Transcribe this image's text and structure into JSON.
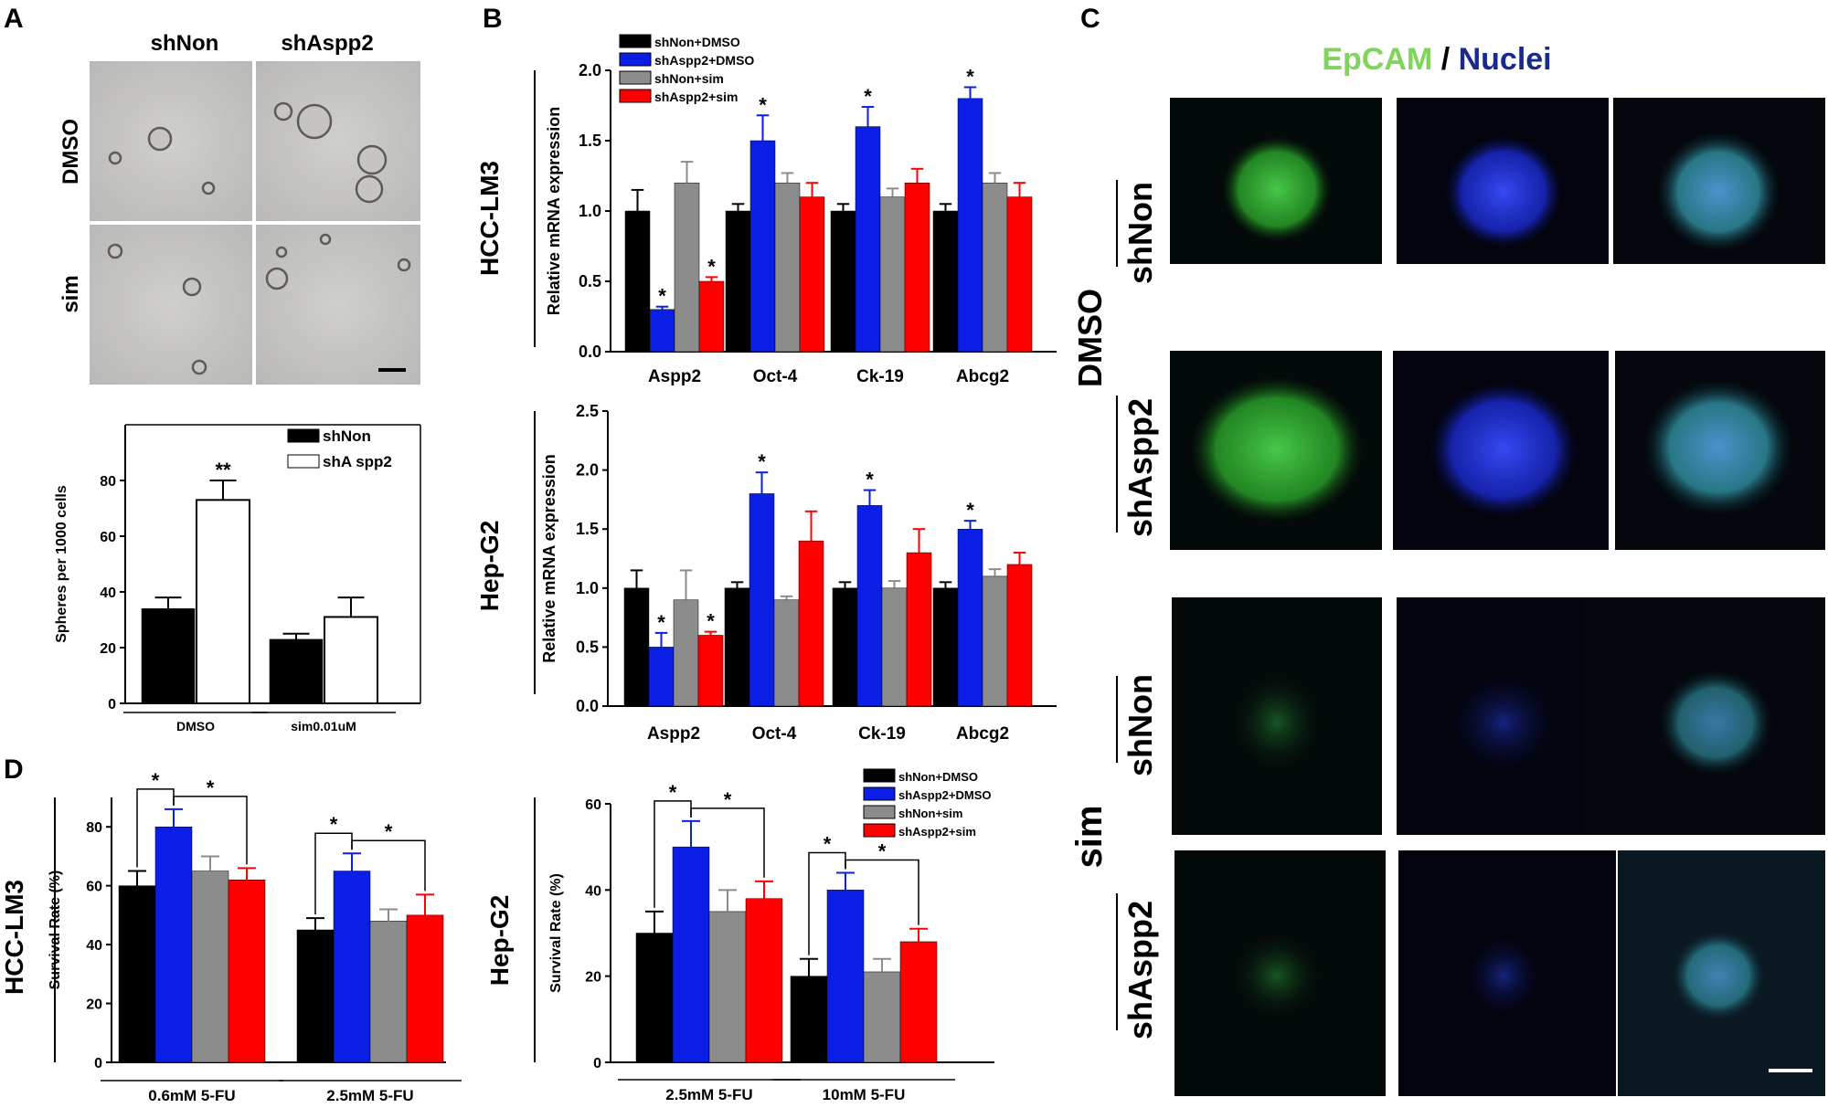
{
  "panel_letters": [
    "A",
    "B",
    "C",
    "D"
  ],
  "panelA": {
    "col_labels": [
      "shNon",
      "shAspp2"
    ],
    "row_labels": [
      "DMSO",
      "sim"
    ]
  },
  "panelC": {
    "title_parts": [
      "EpCAM",
      " / ",
      "Nuclei"
    ],
    "title_colors": [
      "#7fd45a",
      "#000000",
      "#1a2a8a"
    ],
    "row_labels": [
      "shNon",
      "shAspp2",
      "shNon",
      "shAspp2"
    ],
    "group_labels": [
      "DMSO",
      "sim"
    ]
  },
  "chart_data": [
    {
      "id": "A-spheres",
      "type": "bar",
      "categories": [
        "DMSO",
        "sim0.01uM"
      ],
      "series": [
        {
          "name": "shNon",
          "values": [
            34,
            23
          ],
          "errors": [
            4,
            2
          ],
          "color": "#000000"
        },
        {
          "name": "shA spp2",
          "values": [
            73,
            31
          ],
          "errors": [
            7,
            7
          ],
          "color": "#ffffff"
        }
      ],
      "ylabel": "Spheres per 1000 cells",
      "ylim": [
        0,
        100
      ],
      "yticks": [
        "0",
        "20",
        "40",
        "60",
        "80"
      ],
      "annotations": [
        "**"
      ]
    },
    {
      "id": "B-HCC-LM3",
      "type": "bar",
      "row_label": "HCC-LM3",
      "categories": [
        "Aspp2",
        "Oct-4",
        "Ck-19",
        "Abcg2"
      ],
      "series": [
        {
          "name": "shNon+DMSO",
          "values": [
            1.0,
            1.0,
            1.0,
            1.0
          ],
          "errors": [
            0.15,
            0.05,
            0.05,
            0.05
          ],
          "color": "#000000"
        },
        {
          "name": "shAspp2+DMSO",
          "values": [
            0.3,
            1.5,
            1.6,
            1.8
          ],
          "errors": [
            0.02,
            0.18,
            0.14,
            0.08
          ],
          "color": "#0a1ee6"
        },
        {
          "name": "shNon+sim",
          "values": [
            1.2,
            1.2,
            1.1,
            1.2
          ],
          "errors": [
            0.15,
            0.07,
            0.06,
            0.07
          ],
          "color": "#8c8c8c"
        },
        {
          "name": "shAspp2+sim",
          "values": [
            0.5,
            1.1,
            1.2,
            1.1
          ],
          "errors": [
            0.03,
            0.1,
            0.1,
            0.1
          ],
          "color": "#ff0000"
        }
      ],
      "ylabel": "Relative mRNA expression",
      "ylim": [
        0,
        2.0
      ],
      "yticks": [
        "0.0",
        "0.5",
        "1.0",
        "1.5",
        "2.0"
      ],
      "annotations": [
        "*"
      ]
    },
    {
      "id": "B-Hep-G2",
      "type": "bar",
      "row_label": "Hep-G2",
      "categories": [
        "Aspp2",
        "Oct-4",
        "Ck-19",
        "Abcg2"
      ],
      "series": [
        {
          "name": "shNon+DMSO",
          "values": [
            1.0,
            1.0,
            1.0,
            1.0
          ],
          "errors": [
            0.15,
            0.05,
            0.05,
            0.05
          ],
          "color": "#000000"
        },
        {
          "name": "shAspp2+DMSO",
          "values": [
            0.5,
            1.8,
            1.7,
            1.5
          ],
          "errors": [
            0.12,
            0.18,
            0.13,
            0.07
          ],
          "color": "#0a1ee6"
        },
        {
          "name": "shNon+sim",
          "values": [
            0.9,
            0.9,
            1.0,
            1.1
          ],
          "errors": [
            0.25,
            0.03,
            0.06,
            0.06
          ],
          "color": "#8c8c8c"
        },
        {
          "name": "shAspp2+sim",
          "values": [
            0.6,
            1.4,
            1.3,
            1.2
          ],
          "errors": [
            0.03,
            0.25,
            0.2,
            0.1
          ],
          "color": "#ff0000"
        }
      ],
      "ylabel": "Relative mRNA expression",
      "ylim": [
        0,
        2.5
      ],
      "yticks": [
        "0.0",
        "0.5",
        "1.0",
        "1.5",
        "2.0",
        "2.5"
      ],
      "annotations": [
        "*"
      ]
    },
    {
      "id": "D-HCC-LM3",
      "type": "bar",
      "row_label": "HCC-LM3",
      "categories": [
        "0.6mM 5-FU",
        "2.5mM 5-FU"
      ],
      "series": [
        {
          "name": "shNon+DMSO",
          "values": [
            60,
            45
          ],
          "errors": [
            5,
            4
          ],
          "color": "#000000"
        },
        {
          "name": "shAspp2+DMSO",
          "values": [
            80,
            65
          ],
          "errors": [
            6,
            6
          ],
          "color": "#0a1ee6"
        },
        {
          "name": "shNon+sim",
          "values": [
            65,
            48
          ],
          "errors": [
            5,
            4
          ],
          "color": "#8c8c8c"
        },
        {
          "name": "shAspp2+sim",
          "values": [
            62,
            50
          ],
          "errors": [
            4,
            7
          ],
          "color": "#ff0000"
        }
      ],
      "ylabel": "Survival Rate (%)",
      "ylim": [
        0,
        90
      ],
      "yticks": [
        "0",
        "20",
        "40",
        "60",
        "80"
      ],
      "annotations": [
        "*"
      ]
    },
    {
      "id": "D-Hep-G2",
      "type": "bar",
      "row_label": "Hep-G2",
      "categories": [
        "2.5mM 5-FU",
        "10mM 5-FU"
      ],
      "series": [
        {
          "name": "shNon+DMSO",
          "values": [
            30,
            20
          ],
          "errors": [
            5,
            4
          ],
          "color": "#000000"
        },
        {
          "name": "shAspp2+DMSO",
          "values": [
            50,
            40
          ],
          "errors": [
            6,
            4
          ],
          "color": "#0a1ee6"
        },
        {
          "name": "shNon+sim",
          "values": [
            35,
            21
          ],
          "errors": [
            5,
            3
          ],
          "color": "#8c8c8c"
        },
        {
          "name": "shAspp2+sim",
          "values": [
            38,
            28
          ],
          "errors": [
            4,
            3
          ],
          "color": "#ff0000"
        }
      ],
      "ylabel": "Survival Rate (%)",
      "ylim": [
        0,
        60
      ],
      "yticks": [
        "0",
        "20",
        "40",
        "60"
      ],
      "annotations": [
        "*"
      ]
    }
  ]
}
